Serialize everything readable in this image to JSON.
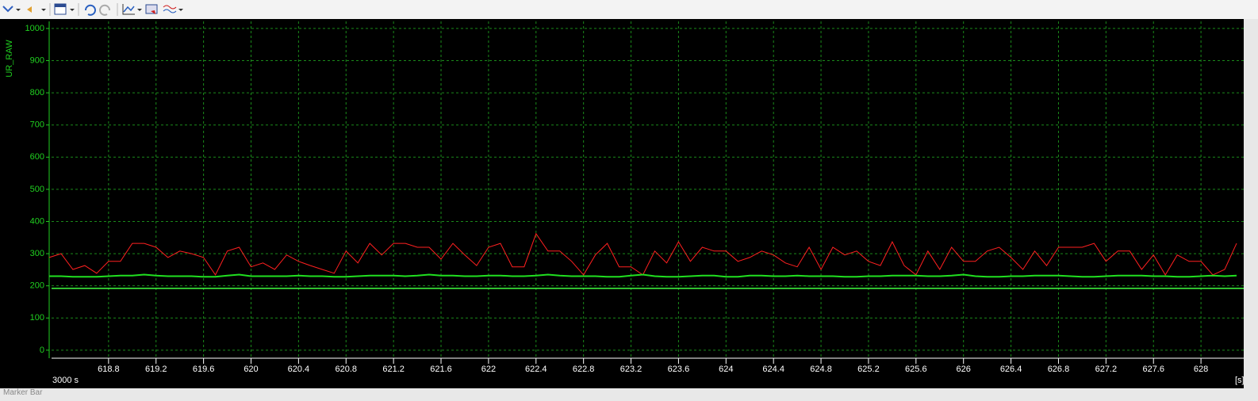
{
  "chart_data": {
    "type": "line",
    "ylabel": "UR_RAW",
    "time_base": "3000 s",
    "x_unit": "[s]",
    "status_bar": "Marker Bar",
    "x": [
      618.3,
      618.4,
      618.5,
      618.6,
      618.7,
      618.8,
      618.9,
      619.0,
      619.1,
      619.2,
      619.3,
      619.4,
      619.5,
      619.6,
      619.7,
      619.8,
      619.9,
      620.0,
      620.1,
      620.2,
      620.3,
      620.4,
      620.5,
      620.6,
      620.7,
      620.8,
      620.9,
      621.0,
      621.1,
      621.2,
      621.3,
      621.4,
      621.5,
      621.6,
      621.7,
      621.8,
      621.9,
      622.0,
      622.1,
      622.2,
      622.3,
      622.4,
      622.5,
      622.6,
      622.7,
      622.8,
      622.9,
      623.0,
      623.1,
      623.2,
      623.3,
      623.4,
      623.5,
      623.6,
      623.7,
      623.8,
      623.9,
      624.0,
      624.1,
      624.2,
      624.3,
      624.4,
      624.5,
      624.6,
      624.7,
      624.8,
      624.9,
      625.0,
      625.1,
      625.2,
      625.3,
      625.4,
      625.5,
      625.6,
      625.7,
      625.8,
      625.9,
      626.0,
      626.1,
      626.2,
      626.3,
      626.4,
      626.5,
      626.6,
      626.7,
      626.8,
      626.9,
      627.0,
      627.1,
      627.2,
      627.3,
      627.4,
      627.5,
      627.6,
      627.7,
      627.8,
      627.9,
      628.0,
      628.1,
      628.2,
      628.3
    ],
    "series": [
      {
        "color": "#ff2020",
        "values": [
          288,
          300,
          251,
          263,
          239,
          276,
          276,
          332,
          332,
          320,
          288,
          308,
          300,
          288,
          234,
          308,
          320,
          259,
          271,
          251,
          296,
          276,
          263,
          251,
          239,
          308,
          271,
          332,
          296,
          332,
          332,
          320,
          320,
          283,
          332,
          296,
          263,
          320,
          332,
          259,
          259,
          362,
          308,
          308,
          276,
          234,
          296,
          332,
          259,
          259,
          234,
          308,
          271,
          337,
          276,
          320,
          308,
          308,
          276,
          288,
          308,
          296,
          271,
          259,
          320,
          251,
          320,
          296,
          308,
          276,
          263,
          337,
          263,
          234,
          308,
          251,
          320,
          276,
          276,
          308,
          320,
          288,
          251,
          308,
          263,
          320,
          320,
          320,
          332,
          276,
          308,
          308,
          251,
          296,
          234,
          296,
          276,
          276,
          234,
          251,
          332
        ]
      },
      {
        "color": "#20e020",
        "values": [
          230,
          230,
          228,
          228,
          228,
          230,
          232,
          232,
          235,
          232,
          230,
          230,
          230,
          228,
          228,
          232,
          235,
          230,
          230,
          230,
          230,
          232,
          230,
          230,
          228,
          228,
          230,
          232,
          232,
          232,
          230,
          232,
          235,
          232,
          232,
          230,
          230,
          232,
          232,
          230,
          230,
          232,
          235,
          232,
          230,
          230,
          230,
          228,
          228,
          232,
          235,
          230,
          228,
          228,
          230,
          232,
          232,
          228,
          228,
          232,
          232,
          230,
          230,
          232,
          230,
          230,
          230,
          228,
          228,
          230,
          230,
          232,
          232,
          232,
          230,
          230,
          232,
          235,
          230,
          228,
          228,
          230,
          230,
          232,
          232,
          232,
          230,
          228,
          228,
          230,
          232,
          232,
          232,
          230,
          230,
          228,
          228,
          230,
          232,
          230,
          232
        ]
      }
    ],
    "reference_line": 192,
    "xlim": [
      618.32,
      628.36
    ],
    "ylim": [
      -25,
      1022
    ],
    "xticks": [
      618.8,
      619.2,
      619.6,
      620,
      620.4,
      620.8,
      621.2,
      621.6,
      622,
      622.4,
      622.8,
      623.2,
      623.6,
      624,
      624.4,
      624.8,
      625.2,
      625.6,
      626,
      626.4,
      626.8,
      627.2,
      627.6,
      628
    ],
    "yticks": [
      0,
      100,
      200,
      300,
      400,
      500,
      600,
      700,
      800,
      900,
      1000
    ],
    "grid": true
  }
}
